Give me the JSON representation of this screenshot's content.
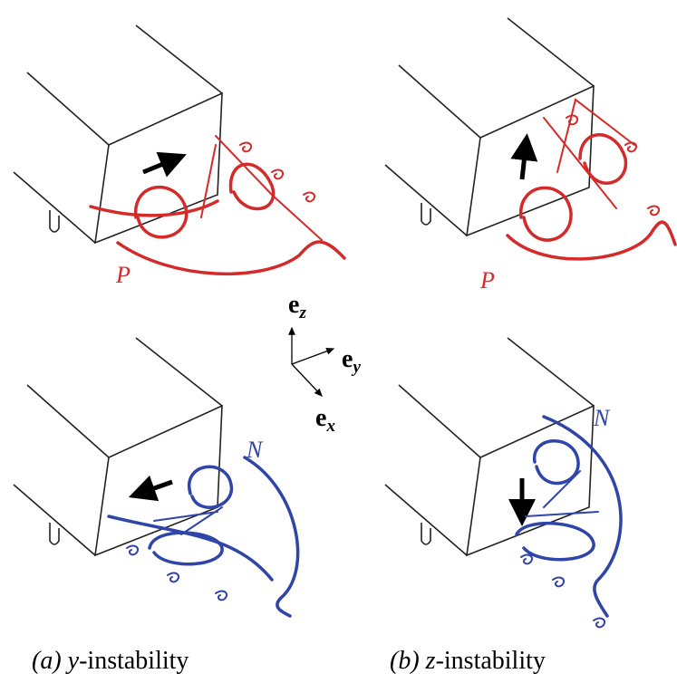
{
  "panels": [
    {
      "label": "P"
    },
    {
      "label": "P"
    },
    {
      "label": "N"
    },
    {
      "label": "N"
    }
  ],
  "axes": {
    "z": {
      "base": "e",
      "sub": "z"
    },
    "y": {
      "base": "e",
      "sub": "y"
    },
    "x": {
      "base": "e",
      "sub": "x"
    }
  },
  "captions": [
    {
      "tag": "(a)",
      "var": "y",
      "rest": "-instability"
    },
    {
      "tag": "(b)",
      "var": "z",
      "rest": "-instability"
    }
  ]
}
